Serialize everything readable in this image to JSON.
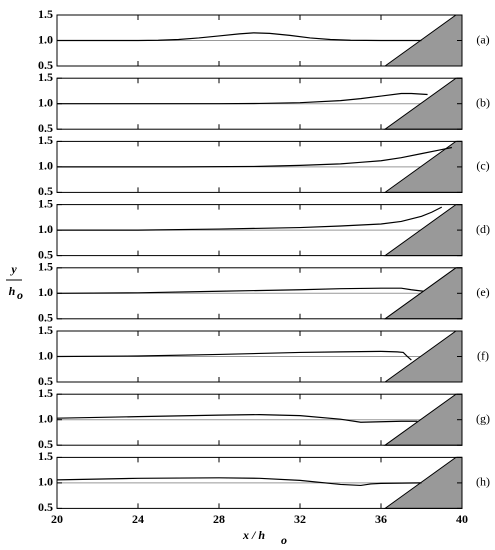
{
  "chart_data": [
    {
      "type": "line",
      "label": "(a)",
      "xlim": [
        20,
        40
      ],
      "ylim": [
        0.5,
        1.5
      ],
      "xticks": [
        20,
        24,
        28,
        32,
        36,
        40
      ],
      "x_tick_labels": false,
      "yticks": [
        {
          "value": 0.5,
          "label": "0.5"
        },
        {
          "value": 1.0,
          "label": "1.0"
        },
        {
          "value": 1.5,
          "label": "1.5"
        }
      ],
      "reference_y": 1,
      "reference_color": "#999999",
      "slope": {
        "x": [
          36.2,
          39.7,
          40,
          40
        ],
        "y": [
          0.5,
          1.5,
          1.5,
          0.5
        ],
        "color": "#999999"
      },
      "series": [
        {
          "color": "#000000",
          "x": [
            20,
            22,
            24,
            25,
            26,
            27,
            28,
            29,
            29.7,
            30.5,
            31.5,
            32.5,
            33.5,
            34.5,
            36,
            38
          ],
          "values": [
            1,
            1,
            1,
            1.005,
            1.02,
            1.05,
            1.09,
            1.13,
            1.15,
            1.14,
            1.1,
            1.05,
            1.02,
            1.005,
            1,
            1
          ]
        }
      ]
    },
    {
      "type": "line",
      "label": "(b)",
      "xlim": [
        20,
        40
      ],
      "ylim": [
        0.5,
        1.5
      ],
      "xticks": [
        20,
        24,
        28,
        32,
        36,
        40
      ],
      "x_tick_labels": false,
      "yticks": [
        {
          "value": 0.5,
          "label": "0.5"
        },
        {
          "value": 1.0,
          "label": "1.0"
        },
        {
          "value": 1.5,
          "label": "1.5"
        }
      ],
      "reference_y": 1,
      "reference_color": "#999999",
      "slope": {
        "x": [
          36.2,
          39.7,
          40,
          40
        ],
        "y": [
          0.5,
          1.5,
          1.5,
          0.5
        ],
        "color": "#999999"
      },
      "series": [
        {
          "color": "#000000",
          "x": [
            20,
            24,
            28,
            30,
            32,
            34,
            35,
            36,
            37,
            37.5,
            38.3
          ],
          "values": [
            1,
            1,
            1,
            1.005,
            1.02,
            1.06,
            1.1,
            1.15,
            1.2,
            1.2,
            1.18
          ]
        }
      ]
    },
    {
      "type": "line",
      "label": "(c)",
      "xlim": [
        20,
        40
      ],
      "ylim": [
        0.5,
        1.5
      ],
      "xticks": [
        20,
        24,
        28,
        32,
        36,
        40
      ],
      "x_tick_labels": false,
      "yticks": [
        {
          "value": 0.5,
          "label": "0.5"
        },
        {
          "value": 1.0,
          "label": "1.0"
        },
        {
          "value": 1.5,
          "label": "1.5"
        }
      ],
      "reference_y": 1,
      "reference_color": "#999999",
      "slope": {
        "x": [
          36.2,
          39.7,
          40,
          40
        ],
        "y": [
          0.5,
          1.5,
          1.5,
          0.5
        ],
        "color": "#999999"
      },
      "series": [
        {
          "color": "#000000",
          "x": [
            20,
            26,
            30,
            32,
            34,
            35,
            36,
            37,
            38,
            39,
            39.5
          ],
          "values": [
            1,
            1,
            1.01,
            1.03,
            1.06,
            1.09,
            1.12,
            1.18,
            1.26,
            1.34,
            1.38
          ]
        }
      ]
    },
    {
      "type": "line",
      "label": "(d)",
      "xlim": [
        20,
        40
      ],
      "ylim": [
        0.5,
        1.5
      ],
      "xticks": [
        20,
        24,
        28,
        32,
        36,
        40
      ],
      "x_tick_labels": false,
      "yticks": [
        {
          "value": 0.5,
          "label": "0.5"
        },
        {
          "value": 1.0,
          "label": "1.0"
        },
        {
          "value": 1.5,
          "label": "1.5"
        }
      ],
      "reference_y": 1,
      "reference_color": "#999999",
      "slope": {
        "x": [
          36.2,
          39.7,
          40,
          40
        ],
        "y": [
          0.5,
          1.5,
          1.5,
          0.5
        ],
        "color": "#999999"
      },
      "series": [
        {
          "color": "#000000",
          "x": [
            20,
            24,
            28,
            32,
            34,
            36,
            37,
            38,
            38.5,
            39
          ],
          "values": [
            1,
            1,
            1.02,
            1.05,
            1.08,
            1.12,
            1.17,
            1.27,
            1.35,
            1.45
          ]
        }
      ]
    },
    {
      "type": "line",
      "label": "(e)",
      "xlim": [
        20,
        40
      ],
      "ylim": [
        0.5,
        1.5
      ],
      "xticks": [
        20,
        24,
        28,
        32,
        36,
        40
      ],
      "x_tick_labels": false,
      "yticks": [
        {
          "value": 0.5,
          "label": "0.5"
        },
        {
          "value": 1.0,
          "label": "1.0"
        },
        {
          "value": 1.5,
          "label": "1.5"
        }
      ],
      "reference_y": 1,
      "reference_color": "#999999",
      "slope": {
        "x": [
          36.2,
          39.7,
          40,
          40
        ],
        "y": [
          0.5,
          1.5,
          1.5,
          0.5
        ],
        "color": "#999999"
      },
      "series": [
        {
          "color": "#000000",
          "x": [
            20,
            24,
            28,
            32,
            34,
            36,
            37,
            37.5,
            38.1
          ],
          "values": [
            1,
            1.01,
            1.04,
            1.07,
            1.09,
            1.1,
            1.1,
            1.07,
            1.04
          ]
        }
      ]
    },
    {
      "type": "line",
      "label": "(f)",
      "xlim": [
        20,
        40
      ],
      "ylim": [
        0.5,
        1.5
      ],
      "xticks": [
        20,
        24,
        28,
        32,
        36,
        40
      ],
      "x_tick_labels": false,
      "yticks": [
        {
          "value": 0.5,
          "label": "0.5"
        },
        {
          "value": 1.0,
          "label": "1.0"
        },
        {
          "value": 1.5,
          "label": "1.5"
        }
      ],
      "reference_y": 1,
      "reference_color": "#999999",
      "slope": {
        "x": [
          36.2,
          39.7,
          40,
          40
        ],
        "y": [
          0.5,
          1.5,
          1.5,
          0.5
        ],
        "color": "#999999"
      },
      "series": [
        {
          "color": "#000000",
          "x": [
            20,
            24,
            28,
            32,
            34,
            36,
            36.8,
            37.1,
            37.3,
            37.5
          ],
          "values": [
            1,
            1.01,
            1.04,
            1.08,
            1.09,
            1.1,
            1.09,
            1.08,
            1.0,
            0.93
          ]
        }
      ]
    },
    {
      "type": "line",
      "label": "(g)",
      "xlim": [
        20,
        40
      ],
      "ylim": [
        0.5,
        1.5
      ],
      "xticks": [
        20,
        24,
        28,
        32,
        36,
        40
      ],
      "x_tick_labels": false,
      "yticks": [
        {
          "value": 0.5,
          "label": "0.5"
        },
        {
          "value": 1.0,
          "label": "1.0"
        },
        {
          "value": 1.5,
          "label": "1.5"
        }
      ],
      "reference_y": 1,
      "reference_color": "#999999",
      "slope": {
        "x": [
          36.2,
          39.7,
          40,
          40
        ],
        "y": [
          0.5,
          1.5,
          1.5,
          0.5
        ],
        "color": "#999999"
      },
      "series": [
        {
          "color": "#000000",
          "x": [
            20,
            24,
            28,
            30,
            32,
            34,
            35,
            36,
            37,
            37.8
          ],
          "values": [
            1.03,
            1.06,
            1.09,
            1.1,
            1.08,
            1.01,
            0.95,
            0.96,
            0.97,
            0.97
          ]
        }
      ]
    },
    {
      "type": "line",
      "label": "(h)",
      "xlim": [
        20,
        40
      ],
      "ylim": [
        0.5,
        1.5
      ],
      "xticks": [
        20,
        24,
        28,
        32,
        36,
        40
      ],
      "x_tick_labels": true,
      "yticks": [
        {
          "value": 0.5,
          "label": "0.5"
        },
        {
          "value": 1.0,
          "label": "1.0"
        },
        {
          "value": 1.5,
          "label": "1.5"
        }
      ],
      "reference_y": 1,
      "reference_color": "#999999",
      "slope": {
        "x": [
          36.2,
          39.7,
          40,
          40
        ],
        "y": [
          0.5,
          1.5,
          1.5,
          0.5
        ],
        "color": "#999999"
      },
      "series": [
        {
          "color": "#000000",
          "x": [
            20,
            24,
            28,
            30,
            32,
            34,
            35,
            35.5,
            36,
            38
          ],
          "values": [
            1.06,
            1.09,
            1.1,
            1.09,
            1.05,
            0.97,
            0.95,
            0.98,
            0.99,
            1.0
          ]
        }
      ]
    }
  ],
  "x_label": {
    "main": "x / h",
    "sub": "o"
  },
  "y_label": {
    "numerator": "y",
    "denominator": "h",
    "sub": "o"
  }
}
